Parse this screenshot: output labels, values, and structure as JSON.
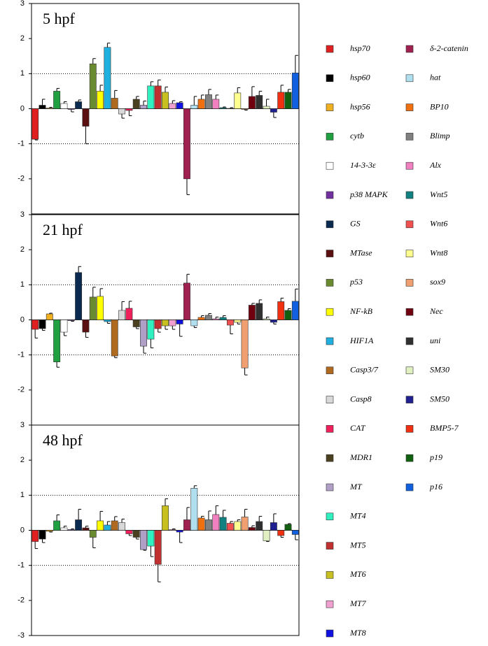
{
  "chart_data": {
    "type": "bar",
    "categories": [
      "hsp70",
      "hsp60",
      "hsp56",
      "cytb",
      "14-3-3ε",
      "p38 MAPK",
      "GS",
      "MTase",
      "p53",
      "NF-kB",
      "HIF1A",
      "Casp3/7",
      "Casp8",
      "CAT",
      "MDR1",
      "MT",
      "MT4",
      "MT5",
      "MT6",
      "MT7",
      "MT8",
      "δ-2-catenin",
      "hat",
      "BP10",
      "Blimp",
      "Alx",
      "Wnt5",
      "Wnt6",
      "Wnt8",
      "sox9",
      "Nec",
      "uni",
      "SM30",
      "SM50",
      "BMP5-7",
      "p19",
      "p16"
    ],
    "colors": [
      "#e02020",
      "#000000",
      "#f0b020",
      "#20a040",
      "#ffffff",
      "#7030a0",
      "#0a2a50",
      "#5a1010",
      "#6a8a30",
      "#ffff00",
      "#20b0e0",
      "#b06a20",
      "#d8d8d8",
      "#f0205a",
      "#4a4020",
      "#b0a0c8",
      "#30f0c0",
      "#c03030",
      "#c8c020",
      "#f0a0d0",
      "#1010e0",
      "#a02050",
      "#b0e0f0",
      "#f07010",
      "#808080",
      "#f080c0",
      "#108080",
      "#f05050",
      "#ffff90",
      "#f0a070",
      "#700010",
      "#303030",
      "#e0f0c0",
      "#202090",
      "#f03010",
      "#106010",
      "#1060e0"
    ],
    "ylim": [
      -3,
      3
    ],
    "reference_lines": [
      1,
      -1
    ],
    "panels": [
      {
        "title": "5 hpf",
        "yticks": [
          3,
          2,
          1,
          0,
          -1,
          -2
        ],
        "values": [
          -0.87,
          0.1,
          0.02,
          0.5,
          0.15,
          -0.02,
          0.2,
          -0.5,
          1.28,
          0.5,
          1.75,
          0.3,
          -0.15,
          -0.05,
          0.27,
          0.1,
          0.65,
          0.65,
          0.47,
          0.15,
          0.17,
          -2.0,
          0.1,
          0.27,
          0.4,
          0.27,
          0.03,
          0.01,
          0.45,
          -0.02,
          0.35,
          0.38,
          0.07,
          -0.1,
          0.47,
          0.47,
          1.02
        ],
        "errors": [
          0.02,
          0.17,
          0.02,
          0.08,
          0.05,
          0.07,
          0.05,
          0.5,
          0.15,
          0.17,
          0.12,
          0.22,
          0.12,
          0.15,
          0.08,
          0.12,
          0.12,
          0.17,
          0.15,
          0.08,
          0.03,
          0.45,
          0.25,
          0.12,
          0.15,
          0.12,
          0.02,
          0.02,
          0.15,
          0.02,
          0.28,
          0.12,
          0.2,
          0.15,
          0.2,
          0.08,
          0.5
        ]
      },
      {
        "title": "21 hpf",
        "yticks": [
          3,
          2,
          1,
          0,
          -1,
          -2
        ],
        "values": [
          -0.27,
          -0.25,
          0.17,
          -1.2,
          -0.35,
          -0.02,
          1.35,
          -0.35,
          0.65,
          0.67,
          -0.05,
          -1.03,
          0.27,
          0.33,
          -0.2,
          -0.75,
          -0.55,
          -0.25,
          -0.17,
          -0.17,
          -0.12,
          1.05,
          -0.17,
          0.07,
          0.13,
          0.03,
          0.07,
          -0.15,
          -0.07,
          -1.37,
          0.42,
          0.47,
          0.03,
          -0.07,
          0.52,
          0.27,
          0.53
        ],
        "errors": [
          0.25,
          0.05,
          0.02,
          0.15,
          0.1,
          0.02,
          0.17,
          0.15,
          0.28,
          0.22,
          0.05,
          0.05,
          0.25,
          0.2,
          0.05,
          0.2,
          0.25,
          0.1,
          0.1,
          0.1,
          0.35,
          0.25,
          0.05,
          0.05,
          0.05,
          0.05,
          0.05,
          0.25,
          0.05,
          0.2,
          0.05,
          0.1,
          0.05,
          0.05,
          0.1,
          0.05,
          0.35
        ]
      },
      {
        "title": "48 hpf",
        "yticks": [
          3,
          2,
          1,
          0,
          -1,
          -2,
          -3
        ],
        "values": [
          -0.32,
          -0.25,
          -0.03,
          0.27,
          0.07,
          0.02,
          0.3,
          0.07,
          -0.2,
          0.27,
          0.15,
          0.27,
          0.22,
          -0.1,
          -0.2,
          -0.55,
          -0.45,
          -0.97,
          0.7,
          0.02,
          -0.05,
          0.3,
          1.2,
          0.35,
          0.3,
          0.45,
          0.37,
          0.2,
          0.25,
          0.38,
          0.08,
          0.25,
          -0.3,
          0.22,
          -0.15,
          0.17,
          -0.12
        ],
        "errors": [
          0.2,
          0.1,
          0.02,
          0.17,
          0.05,
          0.02,
          0.3,
          0.05,
          0.3,
          0.27,
          0.1,
          0.12,
          0.1,
          0.05,
          0.05,
          0.02,
          0.3,
          0.5,
          0.2,
          0.02,
          0.3,
          0.35,
          0.07,
          0.05,
          0.25,
          0.25,
          0.2,
          0.05,
          0.05,
          0.22,
          0.05,
          0.15,
          0.02,
          0.25,
          0.05,
          0.02,
          0.15
        ]
      }
    ]
  }
}
